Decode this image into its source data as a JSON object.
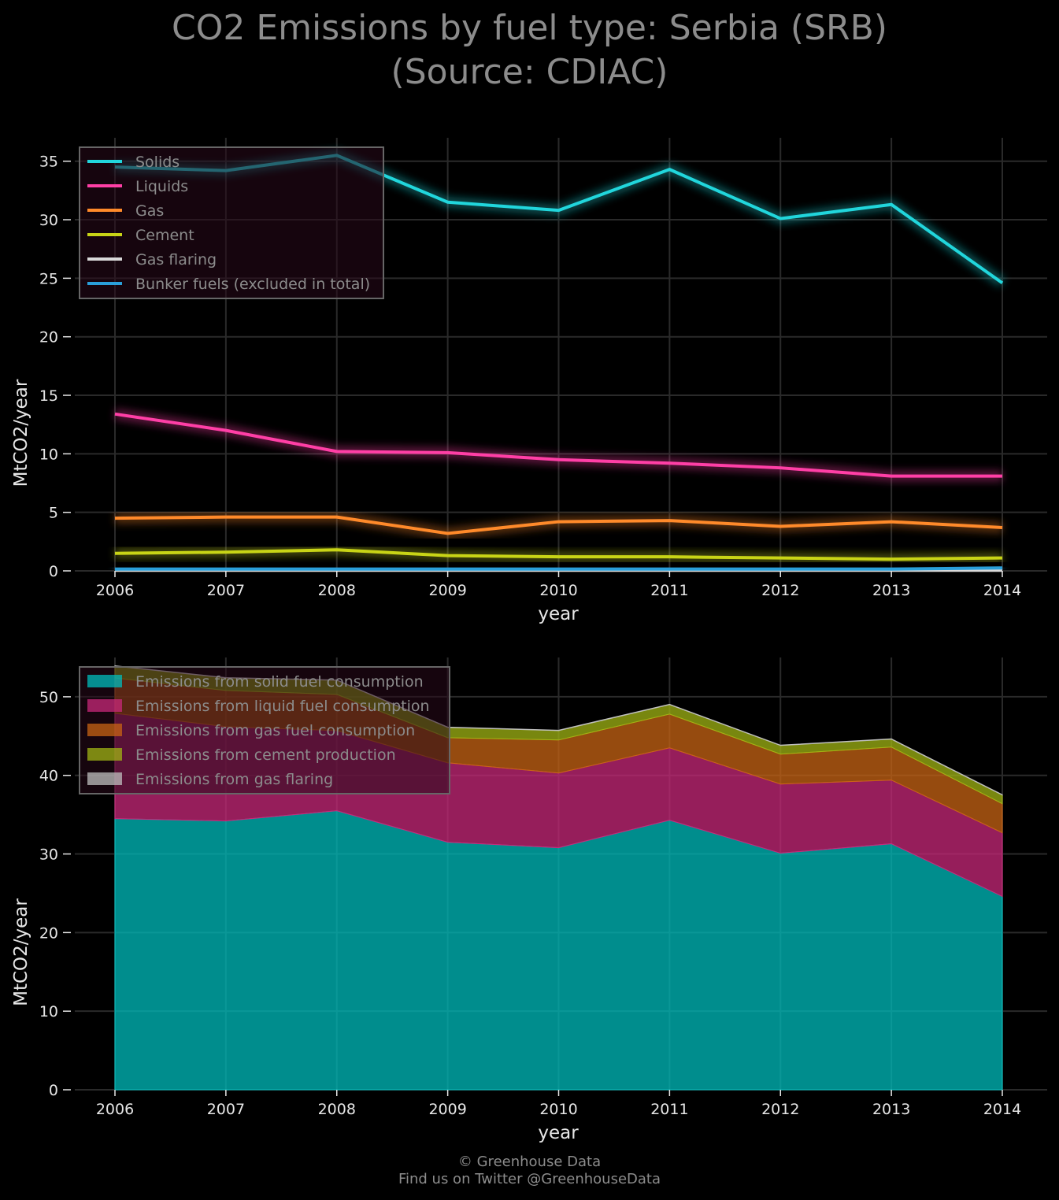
{
  "title": [
    "CO2 Emissions by fuel type: Serbia (SRB)",
    "(Source: CDIAC)"
  ],
  "footer": [
    "© Greenhouse Data",
    "Find us on Twitter @GreenhouseData"
  ],
  "colors": {
    "background": "#000000",
    "grid": "#2a2a2a",
    "tick_text": "#e6e6e6",
    "legend_text": "#8c8c8c",
    "legend_border": "#666666"
  },
  "chart_data": [
    {
      "type": "line",
      "x": [
        2006,
        2007,
        2008,
        2009,
        2010,
        2011,
        2012,
        2013,
        2014
      ],
      "xlabel": "year",
      "ylabel": "MtCO2/year",
      "ylim": [
        0,
        37
      ],
      "yticks": [
        0,
        5,
        10,
        15,
        20,
        25,
        30,
        35
      ],
      "grid": true,
      "legend": "top-left",
      "series": [
        {
          "name": "Solids",
          "color": "#21d6dc",
          "values": [
            34.5,
            34.2,
            35.5,
            31.5,
            30.8,
            34.3,
            30.1,
            31.3,
            24.6
          ]
        },
        {
          "name": "Liquids",
          "color": "#ff3fa6",
          "values": [
            13.4,
            12.0,
            10.2,
            10.1,
            9.5,
            9.2,
            8.8,
            8.1,
            8.1
          ]
        },
        {
          "name": "Gas",
          "color": "#ff8a2a",
          "values": [
            4.5,
            4.6,
            4.6,
            3.2,
            4.2,
            4.3,
            3.8,
            4.2,
            3.7
          ]
        },
        {
          "name": "Cement",
          "color": "#c8d416",
          "values": [
            1.5,
            1.6,
            1.8,
            1.3,
            1.2,
            1.2,
            1.1,
            1.0,
            1.1
          ]
        },
        {
          "name": "Gas flaring",
          "color": "#d9d9d9",
          "values": [
            0.05,
            0.05,
            0.05,
            0.05,
            0.05,
            0.05,
            0.05,
            0.05,
            0.05
          ]
        },
        {
          "name": "Bunker fuels (excluded in total)",
          "color": "#2a9fd9",
          "values": [
            0.15,
            0.15,
            0.15,
            0.15,
            0.15,
            0.15,
            0.15,
            0.15,
            0.25
          ]
        }
      ]
    },
    {
      "type": "area",
      "stacked": true,
      "x": [
        2006,
        2007,
        2008,
        2009,
        2010,
        2011,
        2012,
        2013,
        2014
      ],
      "xlabel": "year",
      "ylabel": "MtCO2/year",
      "ylim": [
        0,
        55
      ],
      "yticks": [
        0,
        10,
        20,
        30,
        40,
        50
      ],
      "grid": true,
      "legend": "top-left",
      "series": [
        {
          "name": "Emissions from solid fuel consumption",
          "color": "#00bcbc",
          "values": [
            34.5,
            34.2,
            35.5,
            31.5,
            30.8,
            34.3,
            30.1,
            31.3,
            24.6
          ]
        },
        {
          "name": "Emissions from liquid fuel consumption",
          "color": "#c8287a",
          "values": [
            13.4,
            12.0,
            10.2,
            10.1,
            9.5,
            9.2,
            8.8,
            8.1,
            8.1
          ]
        },
        {
          "name": "Emissions from gas fuel consumption",
          "color": "#c86414",
          "values": [
            4.5,
            4.6,
            4.6,
            3.2,
            4.2,
            4.3,
            3.8,
            4.2,
            3.7
          ]
        },
        {
          "name": "Emissions from cement production",
          "color": "#a0b414",
          "values": [
            1.5,
            1.6,
            1.8,
            1.3,
            1.2,
            1.2,
            1.1,
            1.0,
            1.1
          ]
        },
        {
          "name": "Emissions from gas flaring",
          "color": "#bfbfbf",
          "values": [
            0.05,
            0.05,
            0.05,
            0.05,
            0.05,
            0.05,
            0.05,
            0.05,
            0.05
          ]
        }
      ]
    }
  ]
}
